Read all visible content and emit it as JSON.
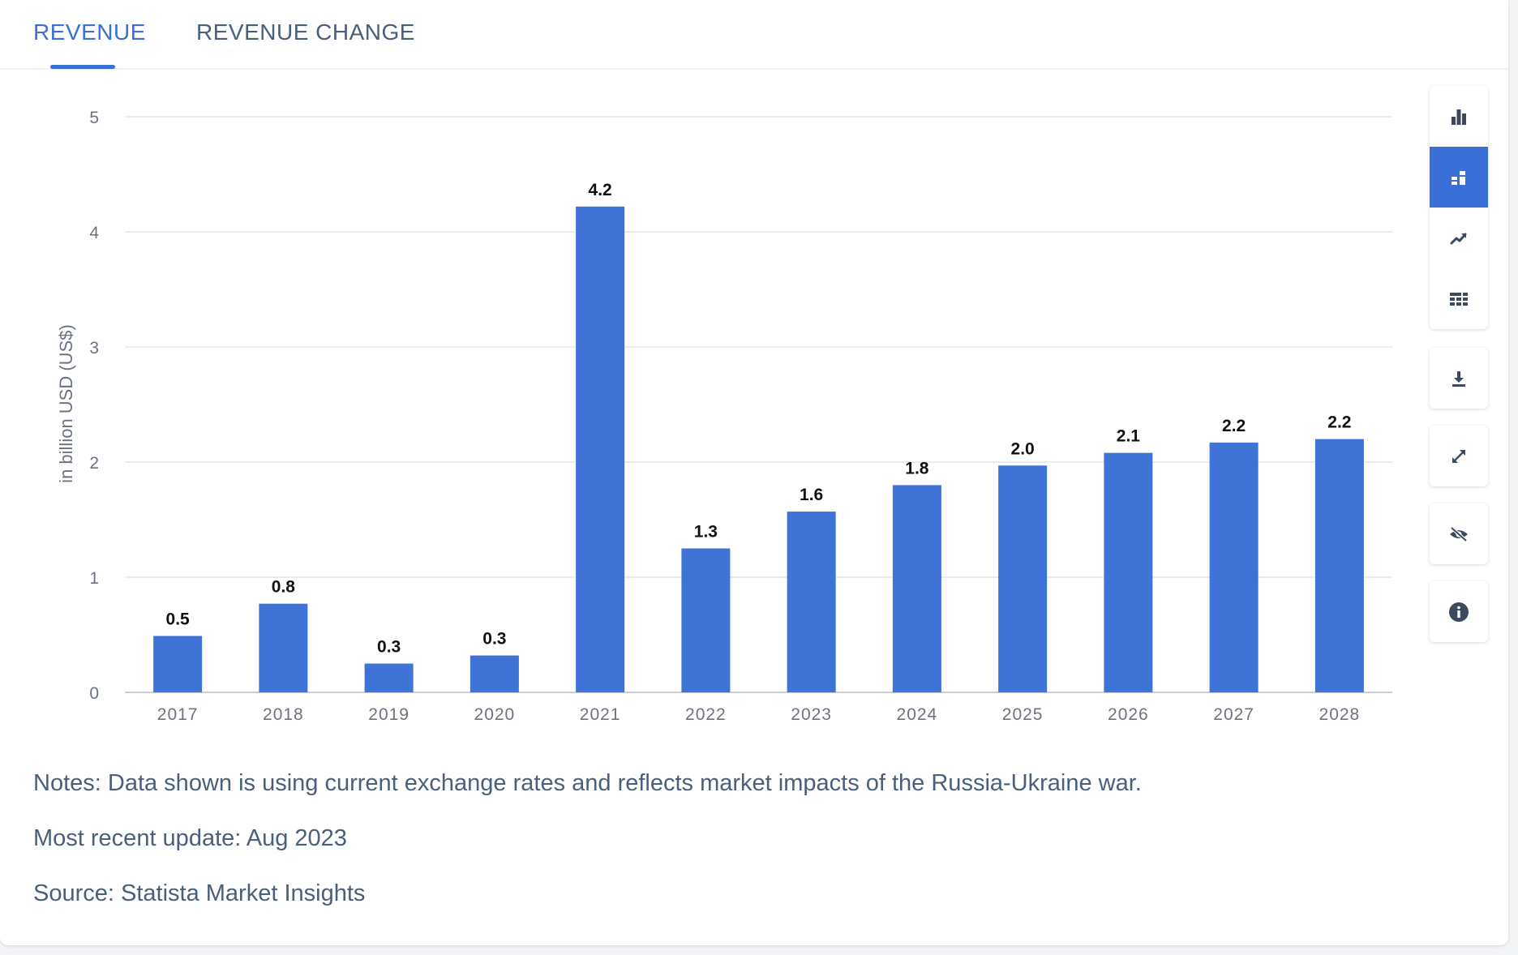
{
  "tabs": [
    {
      "label": "REVENUE",
      "active": true
    },
    {
      "label": "REVENUE CHANGE",
      "active": false
    }
  ],
  "chart_data": {
    "type": "bar",
    "categories": [
      "2017",
      "2018",
      "2019",
      "2020",
      "2021",
      "2022",
      "2023",
      "2024",
      "2025",
      "2026",
      "2027",
      "2028"
    ],
    "values": [
      0.49,
      0.77,
      0.25,
      0.32,
      4.22,
      1.25,
      1.57,
      1.8,
      1.97,
      2.08,
      2.17,
      2.2
    ],
    "data_labels": [
      "0.5",
      "0.8",
      "0.3",
      "0.3",
      "4.2",
      "1.3",
      "1.6",
      "1.8",
      "2.0",
      "2.1",
      "2.2",
      "2.2"
    ],
    "ylabel": "in billion USD (US$)",
    "xlabel": "",
    "ylim": [
      0,
      5
    ],
    "yticks": [
      "0",
      "1",
      "2",
      "3",
      "4",
      "5"
    ],
    "grid": true,
    "bar_color": "#3f74d6"
  },
  "toolbar": {
    "group1": [
      {
        "icon": "bar-chart-icon",
        "active": false
      },
      {
        "icon": "stacked-bar-icon",
        "active": true
      },
      {
        "icon": "trend-line-icon",
        "active": false
      },
      {
        "icon": "table-grid-icon",
        "active": false
      }
    ],
    "download": {
      "icon": "download-icon"
    },
    "expand": {
      "icon": "expand-icon"
    },
    "hide": {
      "icon": "eye-off-icon"
    },
    "info": {
      "icon": "info-icon"
    }
  },
  "notes": {
    "note": "Notes: Data shown is using current exchange rates and reflects market impacts of the Russia-Ukraine war.",
    "update": "Most recent update: Aug 2023",
    "source": "Source: Statista Market Insights"
  },
  "colors": {
    "accent": "#3a6fd8",
    "text": "#4a5f7b",
    "axis_text": "#6b7380",
    "grid": "#e3e6ea"
  }
}
